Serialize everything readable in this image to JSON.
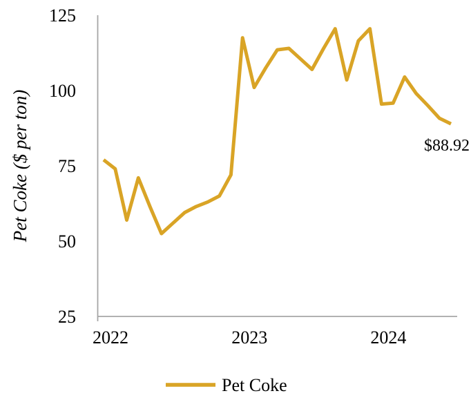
{
  "chart_data": {
    "type": "line",
    "title": "",
    "xlabel": "",
    "ylabel": "Pet Coke ($ per ton)",
    "ylim": [
      25,
      125
    ],
    "yticks": [
      125,
      100,
      75,
      50,
      25
    ],
    "grid": false,
    "legend_position": "bottom-center",
    "x": [
      "Jan 2022",
      "Feb 2022",
      "Mar 2022",
      "Apr 2022",
      "May 2022",
      "Jun 2022",
      "Jul 2022",
      "Aug 2022",
      "Sep 2022",
      "Oct 2022",
      "Nov 2022",
      "Dec 2022",
      "Jan 2023",
      "Feb 2023",
      "Mar 2023",
      "Apr 2023",
      "May 2023",
      "Jun 2023",
      "Jul 2023",
      "Aug 2023",
      "Sep 2023",
      "Oct 2023",
      "Nov 2023",
      "Dec 2023",
      "Jan 2024",
      "Feb 2024",
      "Mar 2024",
      "Apr 2024",
      "May 2024",
      "Jun 2024",
      "Jul 2024"
    ],
    "x_year_labels": [
      {
        "label": "2022",
        "month_index": 0
      },
      {
        "label": "2023",
        "month_index": 12
      },
      {
        "label": "2024",
        "month_index": 24
      }
    ],
    "series": [
      {
        "name": "Pet Coke",
        "color": "#D9A426",
        "values": [
          77,
          74,
          57,
          71,
          61.5,
          52.5,
          56,
          59.5,
          61.5,
          63,
          65,
          72,
          117.5,
          101,
          107.5,
          113.5,
          114,
          110.5,
          107,
          114,
          120.5,
          103.5,
          116.5,
          120.5,
          95.5,
          95.8,
          104.5,
          99,
          95,
          90.8,
          88.92
        ]
      }
    ],
    "annotation": {
      "text": "$88.92",
      "attached_to": "last-point"
    }
  },
  "colors": {
    "line": "#D9A426",
    "axis": "#a6a6a6",
    "text": "#000000",
    "background": "#ffffff"
  }
}
